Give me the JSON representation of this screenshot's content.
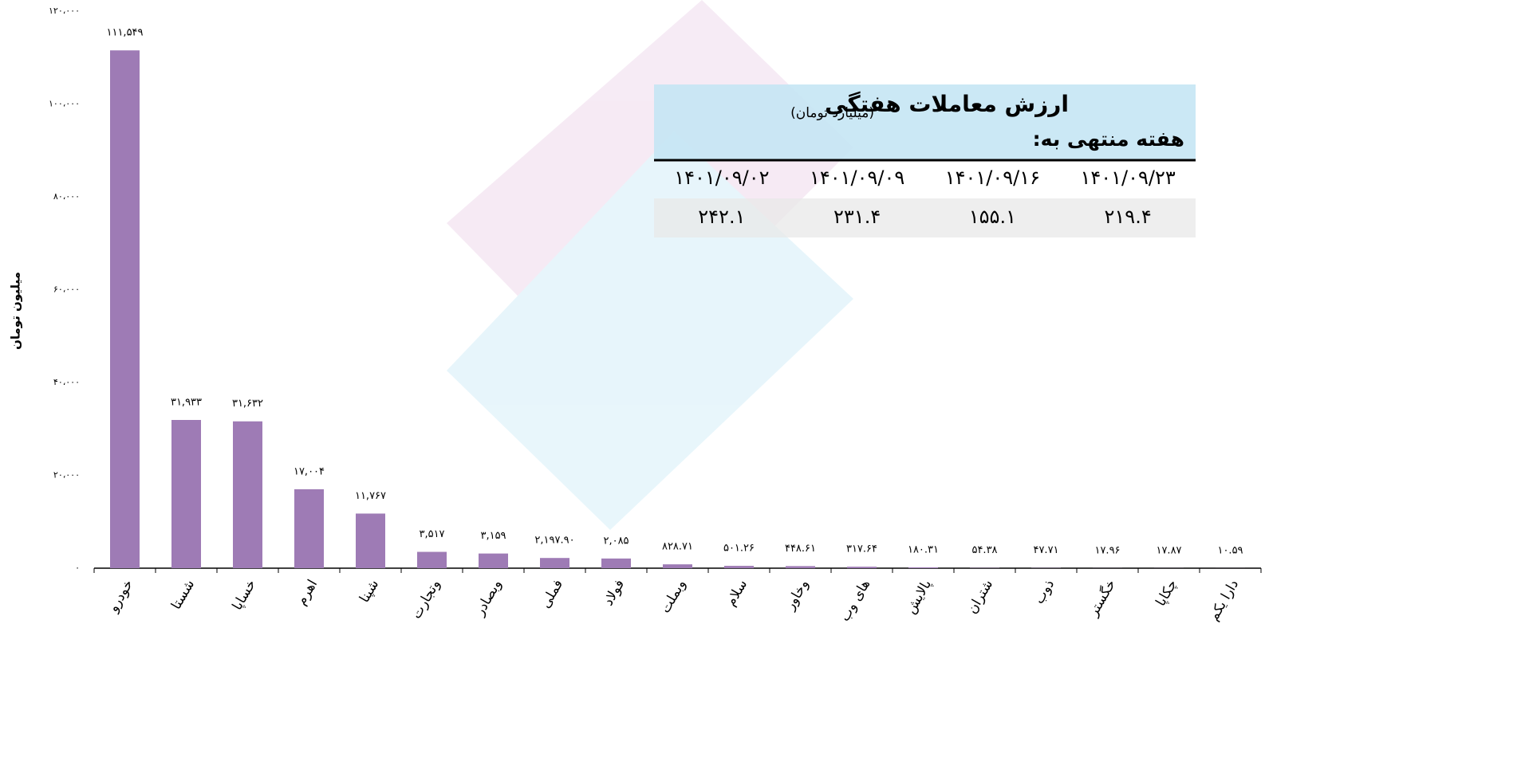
{
  "chart_data": {
    "type": "bar",
    "y_label": "میلیون تومان",
    "categories": [
      "خودرو",
      "شستا",
      "خساپا",
      "اهرم",
      "شپنا",
      "وتجارت",
      "وبصادر",
      "فملی",
      "فولاد",
      "وبملت",
      "سلام",
      "وخاور",
      "های وب",
      "پالایش",
      "شتران",
      "ذوب",
      "خگستر",
      "چکاپا",
      "دارا یکم"
    ],
    "values": [
      111549,
      31933,
      31632,
      17004,
      11767,
      3517,
      3159,
      2197.9,
      2085,
      828.71,
      501.26,
      448.61,
      317.64,
      180.31,
      54.38,
      47.71,
      17.96,
      17.87,
      10.59
    ],
    "value_labels": [
      "۱۱۱,۵۴۹",
      "۳۱,۹۳۳",
      "۳۱,۶۳۲",
      "۱۷,۰۰۴",
      "۱۱,۷۶۷",
      "۳,۵۱۷",
      "۳,۱۵۹",
      "۲,۱۹۷.۹۰",
      "۲,۰۸۵",
      "۸۲۸.۷۱",
      "۵۰۱.۲۶",
      "۴۴۸.۶۱",
      "۳۱۷.۶۴",
      "۱۸۰.۳۱",
      "۵۴.۳۸",
      "۴۷.۷۱",
      "۱۷.۹۶",
      "۱۷.۸۷",
      "۱۰.۵۹"
    ],
    "color": "#9e7bb5",
    "ylim": [
      0,
      120000
    ],
    "yticks": [
      {
        "value": 0,
        "label": "۰"
      },
      {
        "value": 20000,
        "label": "۲۰،۰۰۰"
      },
      {
        "value": 40000,
        "label": "۴۰،۰۰۰"
      },
      {
        "value": 60000,
        "label": "۶۰،۰۰۰"
      },
      {
        "value": 80000,
        "label": "۸۰،۰۰۰"
      },
      {
        "value": 100000,
        "label": "۱۰۰،۰۰۰"
      },
      {
        "value": 120000,
        "label": "۱۲۰،۰۰۰"
      }
    ],
    "grid": false
  },
  "table": {
    "title": "ارزش معاملات هفتگی",
    "subtitle": "(میلیارد تومان)",
    "week_label": "هفته منتهی به:",
    "dates": [
      "۱۴۰۱/۰۹/۲۳",
      "۱۴۰۱/۰۹/۱۶",
      "۱۴۰۱/۰۹/۰۹",
      "۱۴۰۱/۰۹/۰۲"
    ],
    "values": [
      "۲۱۹.۴",
      "۱۵۵.۱",
      "۲۳۱.۴",
      "۲۴۲.۱"
    ]
  }
}
